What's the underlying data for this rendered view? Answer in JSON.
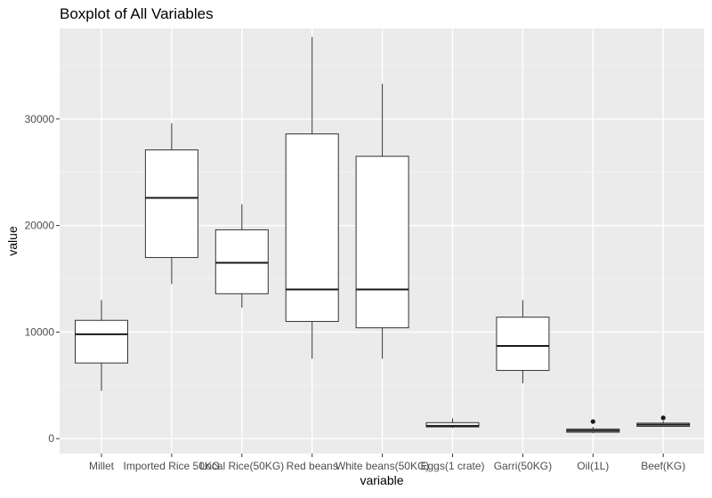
{
  "chart_data": {
    "type": "boxplot",
    "title": "Boxplot of All Variables",
    "xlabel": "variable",
    "ylabel": "value",
    "ylim": [
      -1400,
      38500
    ],
    "yticks": [
      0,
      10000,
      20000,
      30000
    ],
    "ytick_labels": [
      "0",
      "10000",
      "20000",
      "30000"
    ],
    "grid": true,
    "categories": [
      "Millet",
      "Imported Rice 50KG",
      "Local Rice(50KG)",
      "Red beans",
      "White beans(50KG)",
      "Eggs(1 crate)",
      "Garri(50KG)",
      "Oil(1L)",
      "Beef(KG)"
    ],
    "boxes": [
      {
        "category": "Millet",
        "whisker_low": 4500,
        "q1": 7100,
        "median": 9800,
        "q3": 11100,
        "whisker_high": 13000,
        "outliers": []
      },
      {
        "category": "Imported Rice 50KG",
        "whisker_low": 14500,
        "q1": 17000,
        "median": 22600,
        "q3": 27100,
        "whisker_high": 29600,
        "outliers": []
      },
      {
        "category": "Local Rice(50KG)",
        "whisker_low": 12300,
        "q1": 13600,
        "median": 16500,
        "q3": 19600,
        "whisker_high": 22000,
        "outliers": []
      },
      {
        "category": "Red beans",
        "whisker_low": 7500,
        "q1": 11000,
        "median": 14000,
        "q3": 28600,
        "whisker_high": 37700,
        "outliers": []
      },
      {
        "category": "White beans(50KG)",
        "whisker_low": 7500,
        "q1": 10400,
        "median": 14000,
        "q3": 26500,
        "whisker_high": 33300,
        "outliers": []
      },
      {
        "category": "Eggs(1 crate)",
        "whisker_low": 1000,
        "q1": 1100,
        "median": 1200,
        "q3": 1500,
        "whisker_high": 1900,
        "outliers": []
      },
      {
        "category": "Garri(50KG)",
        "whisker_low": 5200,
        "q1": 6400,
        "median": 8700,
        "q3": 11400,
        "whisker_high": 13000,
        "outliers": []
      },
      {
        "category": "Oil(1L)",
        "whisker_low": 500,
        "q1": 600,
        "median": 750,
        "q3": 900,
        "whisker_high": 1100,
        "outliers": [
          1600
        ]
      },
      {
        "category": "Beef(KG)",
        "whisker_low": 1100,
        "q1": 1150,
        "median": 1300,
        "q3": 1450,
        "whisker_high": 1650,
        "outliers": [
          1950
        ]
      }
    ]
  }
}
